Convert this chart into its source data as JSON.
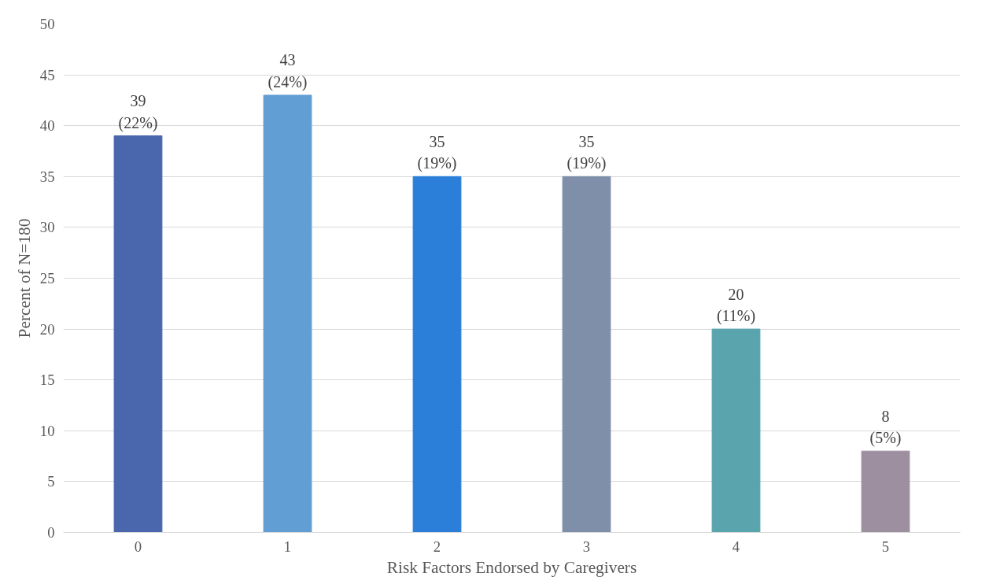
{
  "chart_data": {
    "type": "bar",
    "xlabel": "Risk Factors Endorsed by Caregivers",
    "ylabel": "Percent of N=180",
    "categories": [
      "0",
      "1",
      "2",
      "3",
      "4",
      "5"
    ],
    "values": [
      39,
      43,
      35,
      35,
      20,
      8
    ],
    "colors": [
      "#4a66ad",
      "#619ed3",
      "#2b7fd9",
      "#7f8fa9",
      "#5aa4ae",
      "#9d8fa0"
    ],
    "value_labels": [
      "39\n(22%)",
      "43\n(24%)",
      "35\n(19%)",
      "35\n(19%)",
      "20\n(11%)",
      "8\n(5%)"
    ],
    "ylim": [
      0,
      50
    ],
    "yticks": [
      0,
      5,
      10,
      15,
      20,
      25,
      30,
      35,
      40,
      45,
      50
    ],
    "grid": "y"
  }
}
